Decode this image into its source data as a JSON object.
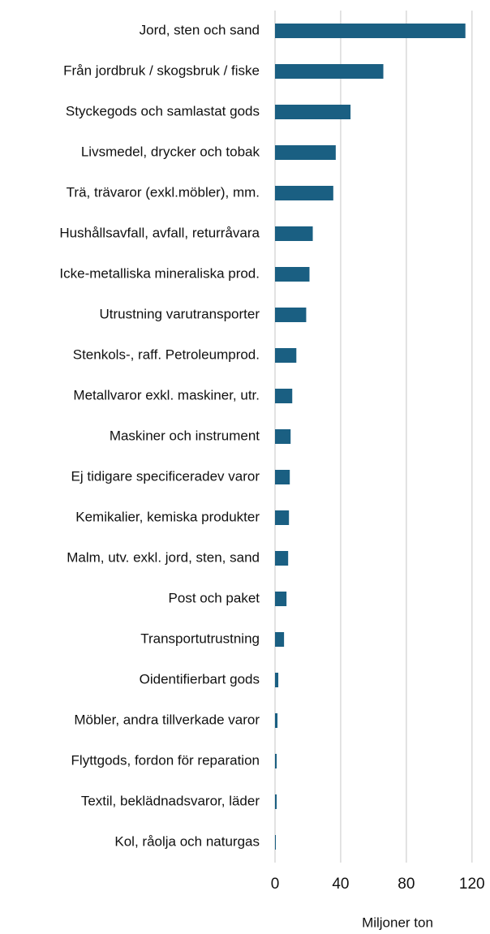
{
  "chart_data": {
    "type": "bar",
    "orientation": "horizontal",
    "categories": [
      "Jord, sten och sand",
      "Från jordbruk / skogsbruk / fiske",
      "Styckegods och samlastat gods",
      "Livsmedel, drycker och tobak",
      "Trä, trävaror (exkl.möbler), mm.",
      "Hushållsavfall, avfall, returråvara",
      "Icke-metalliska mineraliska prod.",
      "Utrustning varutransporter",
      "Stenkols-, raff. Petroleumprod.",
      "Metallvaror exkl. maskiner, utr.",
      "Maskiner och instrument",
      "Ej tidigare specificeradev varor",
      "Kemikalier, kemiska produkter",
      "Malm, utv. exkl. jord, sten, sand",
      "Post och paket",
      "Transportutrustning",
      "Oidentifierbart gods",
      "Möbler, andra tillverkade varor",
      "Flyttgods, fordon för reparation",
      "Textil, beklädnadsvaror, läder",
      "Kol, råolja och naturgas"
    ],
    "values": [
      116,
      66,
      46,
      37,
      35.5,
      23,
      21,
      19,
      13,
      10.5,
      9.5,
      9,
      8.5,
      8,
      7,
      5.5,
      2,
      1.5,
      1,
      1,
      0.5
    ],
    "color": "#1a5f82",
    "xlabel": "Miljoner ton",
    "xlim": [
      0,
      130
    ],
    "xticks": [
      0,
      40,
      80,
      120
    ],
    "grid": true
  }
}
